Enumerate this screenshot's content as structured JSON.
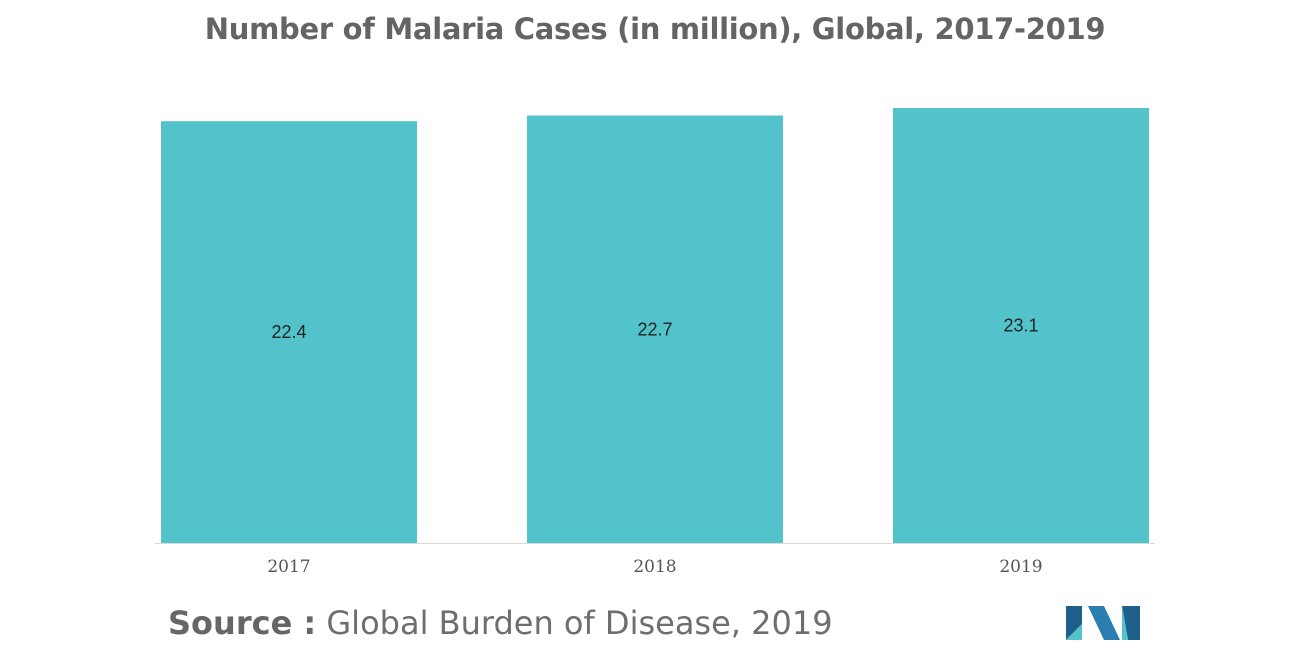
{
  "chart_data": {
    "type": "bar",
    "title": "Number of Malaria Cases (in million), Global, 2017-2019",
    "categories": [
      "2017",
      "2018",
      "2019"
    ],
    "values": [
      22.4,
      22.7,
      23.1
    ],
    "value_labels": [
      "22.4",
      "22.7",
      "23.1"
    ],
    "xlabel": "",
    "ylabel": "",
    "ylim": [
      0,
      23.1
    ],
    "grid": false,
    "legend": "none",
    "bar_color": "#52c3ca"
  },
  "source": {
    "label": "Source :",
    "text": "Global Burden of Disease, 2019"
  },
  "colors": {
    "title": "#646464",
    "tick_label": "#555555",
    "data_label": "#222222",
    "axis_line": "#d9d9d9",
    "logo_dark": "#1f5f8b",
    "logo_light": "#52c3ca"
  },
  "logo": {
    "icon": "brand-logo-icon"
  }
}
